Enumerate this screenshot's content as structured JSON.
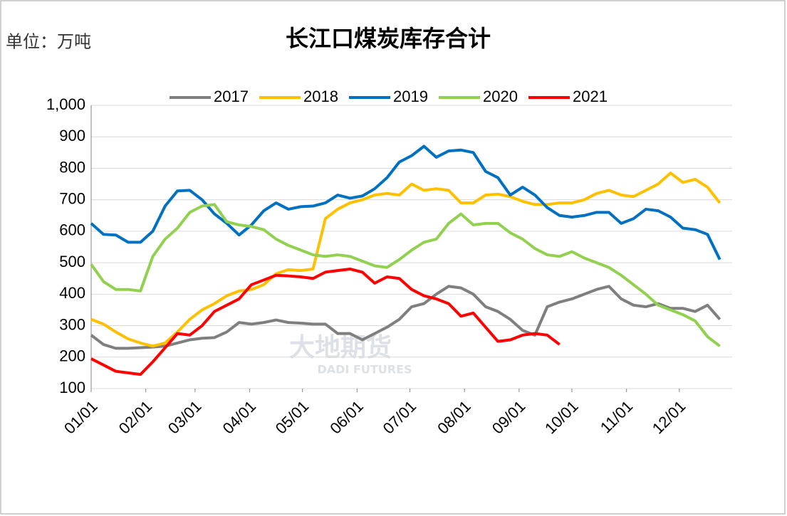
{
  "chart_data": {
    "type": "line",
    "title": "长江口煤炭库存合计",
    "unit_label": "单位：万吨",
    "watermark": "大地期货",
    "watermark_sub": "DADI FUTURES",
    "x": [
      0,
      7,
      14,
      21,
      28,
      35,
      42,
      49,
      56,
      63,
      70,
      77,
      84,
      91,
      98,
      105,
      112,
      119,
      126,
      133,
      140,
      147,
      154,
      161,
      168,
      175,
      182,
      189,
      196,
      203,
      210,
      217,
      224,
      231,
      238,
      245,
      252,
      259,
      266,
      273,
      280,
      287,
      294,
      301,
      308,
      315,
      322,
      329,
      336,
      343,
      350,
      357
    ],
    "xlim": [
      0,
      364
    ],
    "xticks": [
      {
        "value": 0,
        "label": "01/01"
      },
      {
        "value": 31,
        "label": "02/01"
      },
      {
        "value": 59,
        "label": "03/01"
      },
      {
        "value": 90,
        "label": "04/01"
      },
      {
        "value": 120,
        "label": "05/01"
      },
      {
        "value": 151,
        "label": "06/01"
      },
      {
        "value": 181,
        "label": "07/01"
      },
      {
        "value": 212,
        "label": "08/01"
      },
      {
        "value": 243,
        "label": "09/01"
      },
      {
        "value": 273,
        "label": "10/01"
      },
      {
        "value": 304,
        "label": "11/01"
      },
      {
        "value": 334,
        "label": "12/01"
      }
    ],
    "ylim": [
      100,
      1000
    ],
    "yticks": [
      100,
      200,
      300,
      400,
      500,
      600,
      700,
      800,
      900,
      {
        "value": 1000,
        "label": "1,000"
      }
    ],
    "grid": true,
    "series": [
      {
        "name": "2017",
        "color": "#7f7f7f",
        "values": [
          270,
          240,
          228,
          228,
          230,
          232,
          235,
          245,
          255,
          260,
          262,
          280,
          310,
          305,
          310,
          318,
          310,
          308,
          305,
          305,
          275,
          275,
          255,
          275,
          295,
          320,
          360,
          370,
          400,
          425,
          420,
          400,
          360,
          345,
          320,
          285,
          270,
          360,
          375,
          385,
          400,
          415,
          425,
          385,
          365,
          360,
          370,
          355,
          355,
          345,
          365,
          320
        ]
      },
      {
        "name": "2018",
        "color": "#ffc000",
        "values": [
          320,
          305,
          280,
          258,
          245,
          235,
          245,
          280,
          320,
          350,
          370,
          395,
          410,
          415,
          430,
          465,
          478,
          475,
          480,
          640,
          670,
          690,
          700,
          715,
          720,
          715,
          750,
          730,
          735,
          730,
          690,
          690,
          715,
          718,
          710,
          695,
          685,
          685,
          690,
          690,
          700,
          720,
          730,
          715,
          710,
          730,
          750,
          785,
          755,
          765,
          740,
          690
        ]
      },
      {
        "name": "2019",
        "color": "#0070c0",
        "values": [
          625,
          590,
          588,
          565,
          565,
          600,
          680,
          728,
          730,
          700,
          655,
          625,
          588,
          620,
          665,
          690,
          670,
          678,
          680,
          690,
          715,
          705,
          712,
          735,
          770,
          820,
          840,
          870,
          835,
          855,
          858,
          850,
          790,
          770,
          715,
          740,
          715,
          675,
          650,
          645,
          650,
          660,
          660,
          625,
          640,
          670,
          665,
          645,
          610,
          605,
          590,
          510
        ]
      },
      {
        "name": "2020",
        "color": "#92d050",
        "values": [
          495,
          440,
          415,
          415,
          410,
          520,
          575,
          610,
          660,
          680,
          685,
          630,
          620,
          615,
          605,
          575,
          555,
          540,
          525,
          520,
          525,
          520,
          505,
          490,
          485,
          510,
          540,
          565,
          575,
          625,
          655,
          620,
          625,
          625,
          595,
          575,
          545,
          525,
          520,
          535,
          515,
          500,
          485,
          460,
          430,
          400,
          365,
          350,
          335,
          315,
          265,
          235
        ]
      },
      {
        "name": "2021",
        "color": "#ff0000",
        "values": [
          195,
          175,
          155,
          150,
          145,
          185,
          230,
          275,
          270,
          300,
          345,
          365,
          385,
          430,
          445,
          460,
          458,
          455,
          450,
          470,
          475,
          480,
          470,
          435,
          455,
          450,
          415,
          395,
          385,
          370,
          330,
          340,
          295,
          250,
          255,
          270,
          275,
          270,
          240,
          null,
          null,
          null,
          null,
          null,
          null,
          null,
          null,
          null,
          null,
          null,
          null,
          null
        ]
      }
    ]
  }
}
